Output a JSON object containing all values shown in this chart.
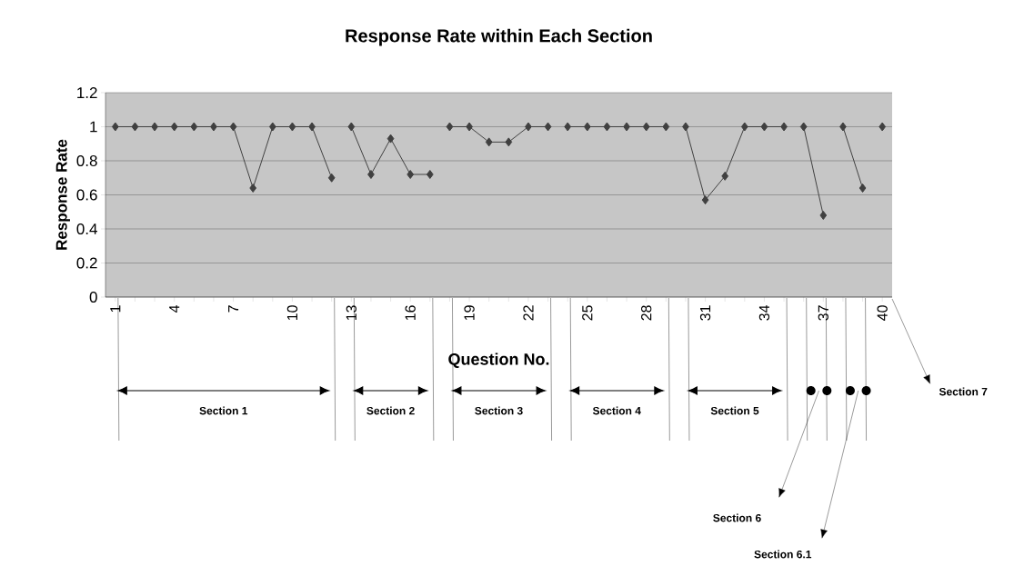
{
  "chart_data": {
    "type": "line",
    "title": "Response Rate within Each Section",
    "xlabel": "Question No.",
    "ylabel": "Response Rate",
    "xlim": [
      0.5,
      40.5
    ],
    "ylim": [
      0,
      1.2
    ],
    "xticks": [
      1,
      {
        "value": 2,
        "label": null
      },
      {
        "value": 3,
        "label": null
      },
      4,
      {
        "value": 5,
        "label": null
      },
      {
        "value": 6,
        "label": null
      },
      7,
      {
        "value": 8,
        "label": null
      },
      {
        "value": 9,
        "label": null
      },
      10,
      {
        "value": 11,
        "label": null
      },
      {
        "value": 12,
        "label": null
      },
      13,
      {
        "value": 14,
        "label": null
      },
      {
        "value": 15,
        "label": null
      },
      16,
      {
        "value": 17,
        "label": null
      },
      {
        "value": 18,
        "label": null
      },
      19,
      {
        "value": 20,
        "label": null
      },
      {
        "value": 21,
        "label": null
      },
      22,
      {
        "value": 23,
        "label": null
      },
      {
        "value": 24,
        "label": null
      },
      25,
      {
        "value": 26,
        "label": null
      },
      {
        "value": 27,
        "label": null
      },
      28,
      {
        "value": 29,
        "label": null
      },
      {
        "value": 30,
        "label": null
      },
      31,
      {
        "value": 32,
        "label": null
      },
      {
        "value": 33,
        "label": null
      },
      34,
      {
        "value": 35,
        "label": null
      },
      {
        "value": 36,
        "label": null
      },
      37,
      {
        "value": 38,
        "label": null
      },
      {
        "value": 39,
        "label": null
      },
      40
    ],
    "yticks": [
      0,
      0.2,
      0.4,
      0.6,
      0.8,
      1,
      1.2
    ],
    "grid": "y",
    "marker": "diamond",
    "series": [
      {
        "color": "#404040",
        "x": [
          1,
          2,
          3,
          4,
          5,
          6,
          7,
          8,
          9,
          10,
          11,
          12
        ],
        "values": [
          1,
          1,
          1,
          1,
          1,
          1,
          1,
          0.64,
          1,
          1,
          1,
          0.7
        ]
      },
      {
        "color": "#404040",
        "x": [
          13,
          14,
          15,
          16,
          17
        ],
        "values": [
          1,
          0.72,
          0.93,
          0.72,
          0.72
        ]
      },
      {
        "color": "#404040",
        "x": [
          18,
          19,
          20,
          21,
          22,
          23
        ],
        "values": [
          1,
          1,
          0.91,
          0.91,
          1,
          1
        ]
      },
      {
        "color": "#404040",
        "x": [
          24,
          25,
          26,
          27,
          28,
          29
        ],
        "values": [
          1,
          1,
          1,
          1,
          1,
          1
        ]
      },
      {
        "color": "#404040",
        "x": [
          30,
          31,
          32,
          33,
          34,
          35
        ],
        "values": [
          1,
          0.57,
          0.71,
          1,
          1,
          1
        ]
      },
      {
        "color": "#404040",
        "x": [
          36,
          37
        ],
        "values": [
          1,
          0.48
        ]
      },
      {
        "color": "#404040",
        "x": [
          38,
          39
        ],
        "values": [
          1,
          0.64
        ]
      },
      {
        "color": "#404040",
        "x": [
          40
        ],
        "values": [
          1
        ]
      }
    ],
    "annotations": [
      "Section 1",
      "Section 2",
      "Section 3",
      "Section 4",
      "Section 5",
      "Section 6",
      "Section 6.1",
      "Section 7"
    ]
  }
}
